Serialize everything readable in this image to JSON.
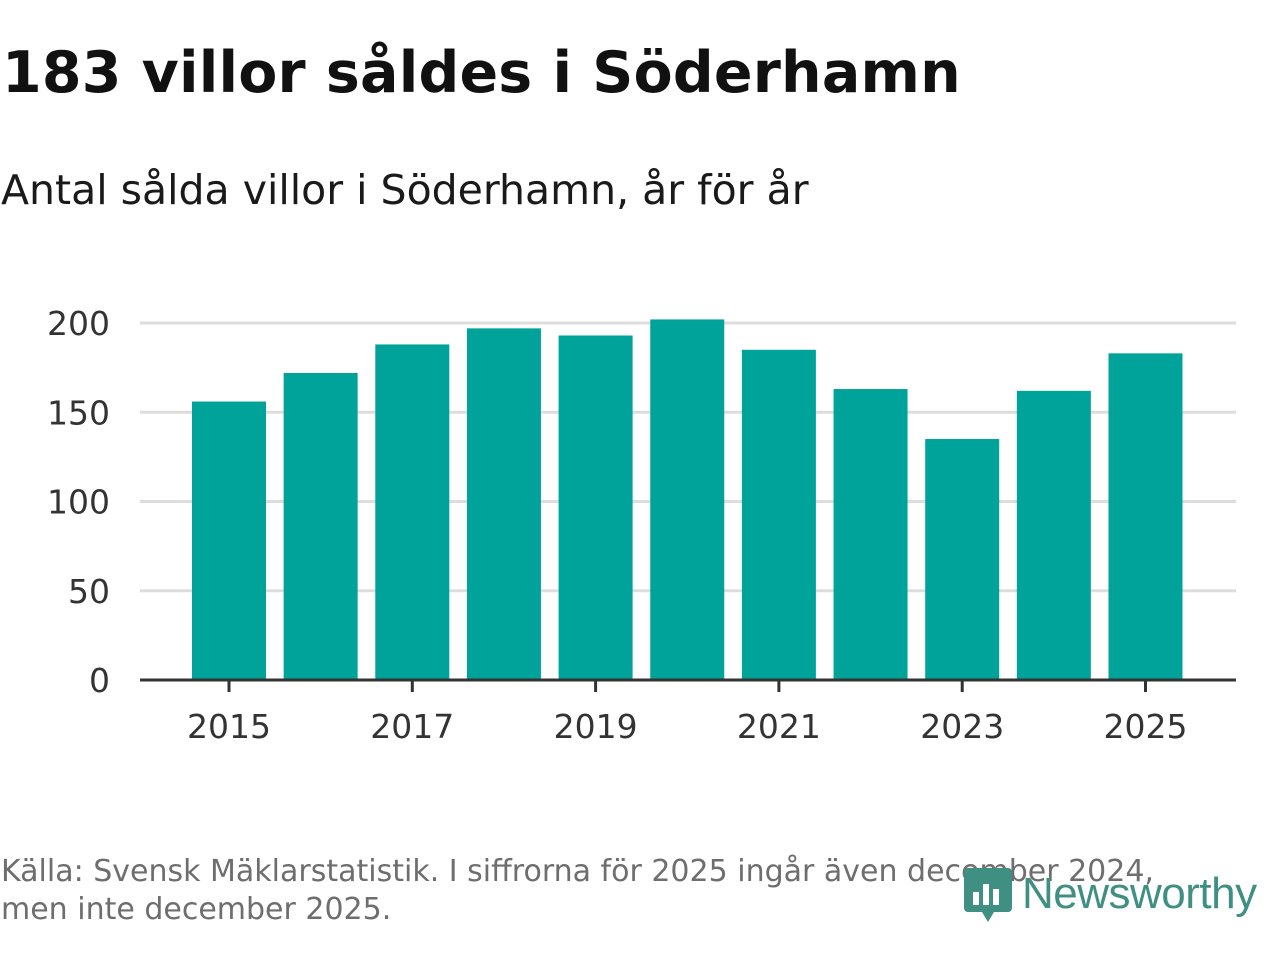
{
  "header": {
    "title": "183 villor såldes i Söderhamn",
    "subtitle": "Antal sålda villor i Söderhamn, år för år"
  },
  "footer": {
    "source": "Källa: Svensk Mäklarstatistik. I siffrorna för 2025 ingår även december 2024, men inte december 2025.",
    "logo_text": "Newsworthy"
  },
  "colors": {
    "bar": "#00a39a",
    "grid": "#dddddd",
    "axis": "#333333",
    "logo": "#3f8f82"
  },
  "chart_data": {
    "type": "bar",
    "title": "183 villor såldes i Söderhamn",
    "subtitle": "Antal sålda villor i Söderhamn, år för år",
    "xlabel": "",
    "ylabel": "",
    "categories": [
      "2015",
      "2016",
      "2017",
      "2018",
      "2019",
      "2020",
      "2021",
      "2022",
      "2023",
      "2024",
      "2025"
    ],
    "values": [
      156,
      172,
      188,
      197,
      193,
      202,
      185,
      163,
      135,
      162,
      183
    ],
    "ylim": [
      0,
      200
    ],
    "yticks": [
      0,
      50,
      100,
      150,
      200
    ],
    "xticks": [
      "2015",
      "2017",
      "2019",
      "2021",
      "2023",
      "2025"
    ],
    "grid": true,
    "legend": "none"
  }
}
